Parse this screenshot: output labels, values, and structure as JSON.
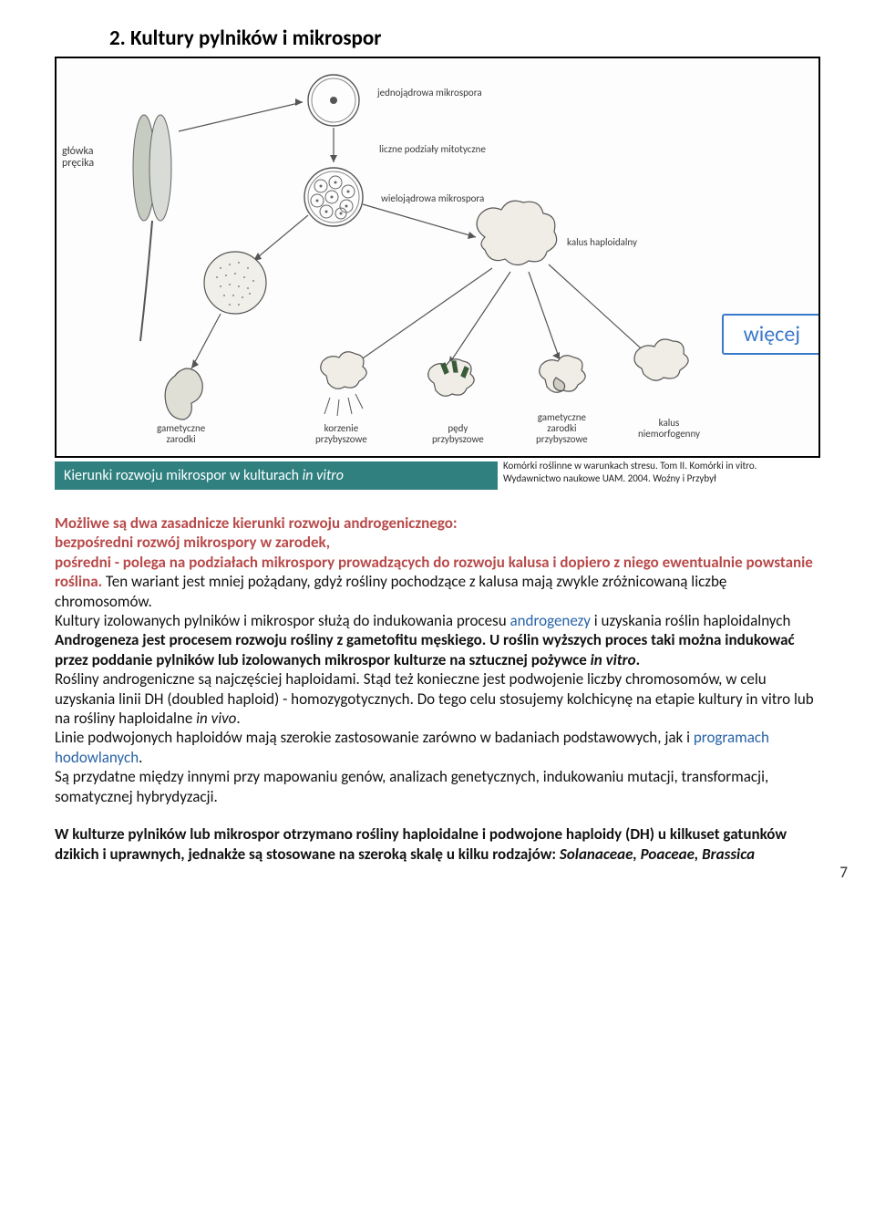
{
  "heading": "2. Kultury pylników i mikrospor",
  "diagram": {
    "labels": {
      "glowka": "główka\npręcika",
      "mikrospora1": "jednojądrowa mikrospora",
      "mitotyczne": "liczne podziały mitotyczne",
      "mikrospora2": "wielojądrowa mikrospora",
      "kalus_hap": "kalus haploidalny",
      "gam_zarodki1": "gametyczne\nzarodki",
      "korzenie": "korzenie\nprzybyszowe",
      "pedy": "pędy\nprzybyszowe",
      "gam_zarodki2": "gametyczne\nzarodki\nprzybyszowe",
      "kalus_niem": "kalus\nniemorfogenny"
    },
    "wiecej": "więcej",
    "caption": "Kierunki rozwoju mikrospor w kulturach in vitro",
    "citation": "Komórki roślinne w warunkach stresu. Tom II. Komórki in vitro. Wydawnictwo naukowe UAM. 2004. Woźny i Przybył"
  },
  "body": {
    "p1a": "Możliwe są dwa zasadnicze kierunki rozwoju androgenicznego:",
    "p1b": "bezpośredni rozwój mikrospory w zarodek,",
    "p1c": "pośredni - polega na podziałach mikrospory prowadzących do rozwoju kalusa i dopiero z niego ewentualnie powstanie roślina.",
    "p1d": " Ten wariant jest mniej pożądany, gdyż rośliny pochodzące z kalusa mają zwykle zróżnicowaną liczbę chromosomów.",
    "p2a": "Kultury izolowanych pylników i mikrospor służą do indukowania procesu ",
    "p2a_link": "androgenezy",
    "p2a2": " i uzyskania roślin haploidalnych ",
    "p2b": "Androgeneza jest procesem rozwoju rośliny z gametofitu męskiego. U roślin wyższych proces taki można indukować przez poddanie pylników lub izolowanych mikrospor kulturze na sztucznej pożywce ",
    "p2b_it": "in vitro",
    "p2b2": ".",
    "p3": "Rośliny androgeniczne są najczęściej haploidami. Stąd też konieczne jest podwojenie liczby chromosomów, w celu uzyskania linii DH (doubled haploid) - homozygotycznych. Do tego celu stosujemy kolchicynę na etapie kultury in vitro lub na rośliny haploidalne ",
    "p3_it": "in vivo",
    "p3b": ".",
    "p4a": "Linie podwojonych haploidów mają szerokie zastosowanie zarówno w badaniach podstawowych, jak i ",
    "p4_link": "programach hodowlanych",
    "p4b": ".",
    "p5": "Są przydatne między innymi przy mapowaniu genów, analizach genetycznych, indukowaniu mutacji, transformacji, somatycznej hybrydyzacji.",
    "p6": "W kulturze pylników lub mikrospor otrzymano rośliny haploidalne i podwojone haploidy (DH) u kilkuset gatunków dzikich i uprawnych, jednakże są stosowane na szeroką skalę u kilku rodzajów: ",
    "p6_it": "Solanaceae, Poaceae, Brassica"
  },
  "page_number": "7"
}
